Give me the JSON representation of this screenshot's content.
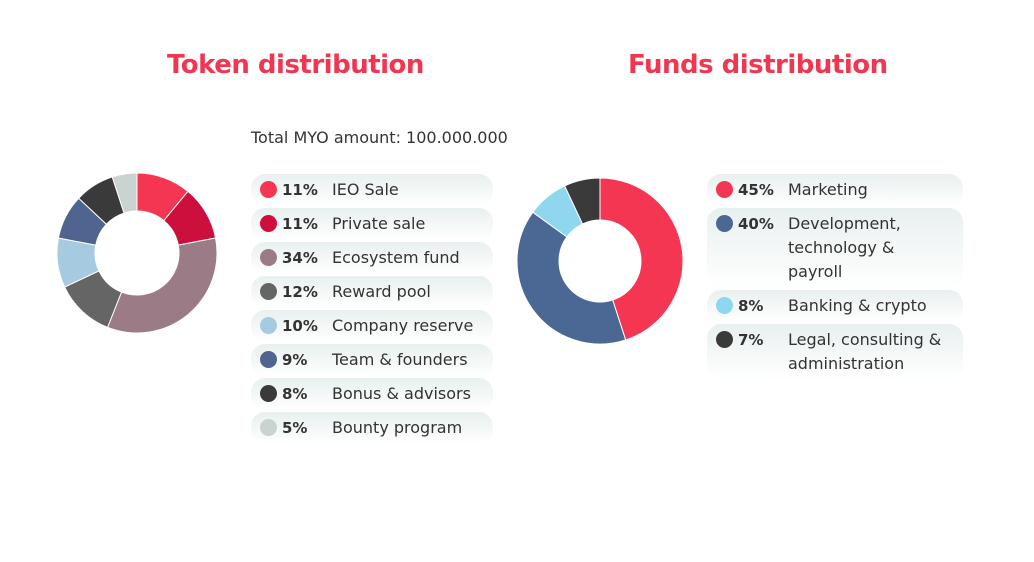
{
  "token": {
    "title": "Token distribution",
    "total_label": "Total MYO amount: 100.000.000"
  },
  "funds": {
    "title": "Funds distribution"
  },
  "chart_data": [
    {
      "type": "pie",
      "title": "Token distribution",
      "donut": true,
      "categories": [
        "IEO Sale",
        "Private sale",
        "Ecosystem fund",
        "Reward pool",
        "Company reserve",
        "Team & founders",
        "Bonus & advisors",
        "Bounty program"
      ],
      "values": [
        11,
        11,
        34,
        12,
        10,
        9,
        8,
        5
      ],
      "labels": [
        "11%",
        "11%",
        "34%",
        "12%",
        "10%",
        "9%",
        "8%",
        "5%"
      ],
      "colors": [
        "#f53652",
        "#cc0f3d",
        "#9b7b86",
        "#656565",
        "#a6cadf",
        "#4f648f",
        "#3a3a3a",
        "#c9d3d0"
      ],
      "legend": "right"
    },
    {
      "type": "pie",
      "title": "Funds distribution",
      "donut": true,
      "categories": [
        "Marketing",
        "Development, technology & payroll",
        "Banking & crypto",
        "Legal, consulting & administration"
      ],
      "values": [
        45,
        40,
        8,
        7
      ],
      "labels": [
        "45%",
        "40%",
        "8%",
        "7%"
      ],
      "colors": [
        "#f53652",
        "#4a6893",
        "#8fd6ef",
        "#3a3a3a"
      ],
      "legend": "right"
    }
  ]
}
